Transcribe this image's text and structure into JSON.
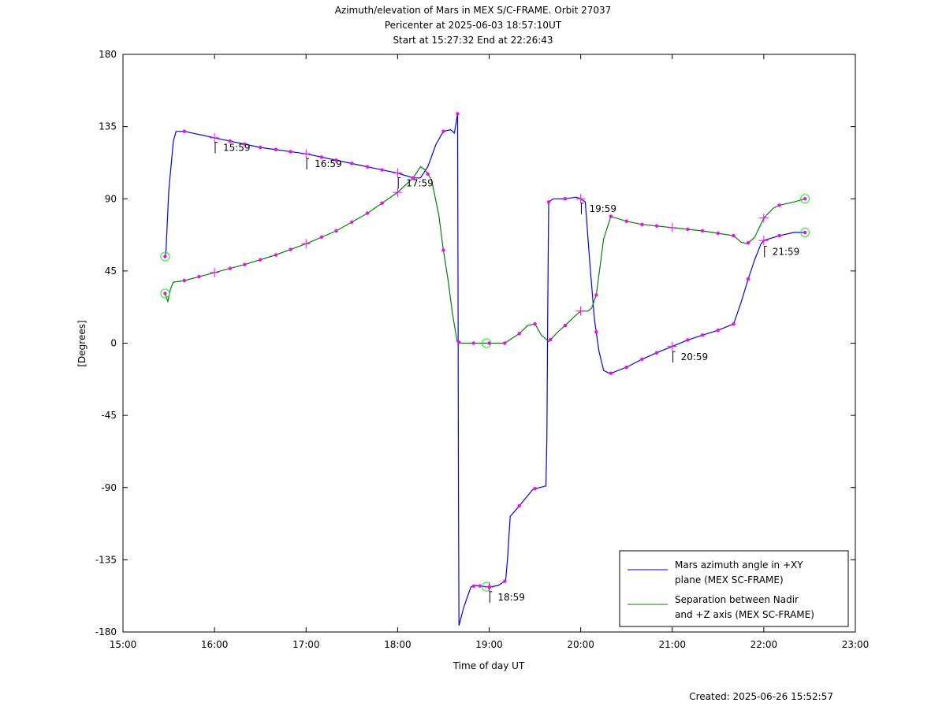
{
  "chart_data": {
    "type": "line",
    "title_lines": [
      "Azimuth/elevation of Mars in MEX S/C-FRAME.  Orbit 27037",
      "Pericenter at 2025-06-03 18:57:10UT",
      "Start at 15:27:32 End at 22:26:43"
    ],
    "xlabel": "Time of day UT",
    "ylabel": "[Degrees]",
    "xlim": [
      15.0,
      23.0
    ],
    "ylim": [
      -180,
      180
    ],
    "x_ticks": [
      {
        "v": 15,
        "label": "15:00"
      },
      {
        "v": 16,
        "label": "16:00"
      },
      {
        "v": 17,
        "label": "17:00"
      },
      {
        "v": 18,
        "label": "18:00"
      },
      {
        "v": 19,
        "label": "19:00"
      },
      {
        "v": 20,
        "label": "20:00"
      },
      {
        "v": 21,
        "label": "21:00"
      },
      {
        "v": 22,
        "label": "22:00"
      },
      {
        "v": 23,
        "label": "23:00"
      }
    ],
    "y_ticks": [
      {
        "v": 180,
        "label": "180"
      },
      {
        "v": 135,
        "label": "135"
      },
      {
        "v": 90,
        "label": "90"
      },
      {
        "v": 45,
        "label": "45"
      },
      {
        "v": 0,
        "label": "0"
      },
      {
        "v": -45,
        "label": "-45"
      },
      {
        "v": -90,
        "label": "-90"
      },
      {
        "v": -135,
        "label": "-135"
      },
      {
        "v": -180,
        "label": "-180"
      }
    ],
    "grid": false,
    "legend_position": "bottom-right",
    "series": [
      {
        "name": "Mars azimuth angle in +XY plane (MEX SC-FRAME)",
        "legend_lines": [
          "Mars azimuth angle in +XY",
          "plane (MEX SC-FRAME)"
        ],
        "color": "#0000ff",
        "points": [
          [
            15.46,
            54
          ],
          [
            15.47,
            58
          ],
          [
            15.5,
            95
          ],
          [
            15.55,
            126
          ],
          [
            15.58,
            132
          ],
          [
            15.67,
            132
          ],
          [
            16.0,
            128
          ],
          [
            16.5,
            122
          ],
          [
            17.0,
            118
          ],
          [
            17.5,
            112
          ],
          [
            17.83,
            108
          ],
          [
            18.0,
            106
          ],
          [
            18.17,
            103
          ],
          [
            18.25,
            103
          ],
          [
            18.33,
            110
          ],
          [
            18.42,
            124
          ],
          [
            18.5,
            132
          ],
          [
            18.58,
            133
          ],
          [
            18.62,
            131
          ],
          [
            18.655,
            143
          ],
          [
            18.66,
            40
          ],
          [
            18.665,
            -100
          ],
          [
            18.67,
            -176
          ],
          [
            18.72,
            -165
          ],
          [
            18.8,
            -152
          ],
          [
            18.85,
            -151
          ],
          [
            19.0,
            -152
          ],
          [
            19.1,
            -151
          ],
          [
            19.18,
            -148
          ],
          [
            19.2,
            -135
          ],
          [
            19.23,
            -108
          ],
          [
            19.32,
            -102
          ],
          [
            19.48,
            -91
          ],
          [
            19.55,
            -90
          ],
          [
            19.62,
            -89
          ],
          [
            19.63,
            -60
          ],
          [
            19.64,
            20
          ],
          [
            19.65,
            88
          ],
          [
            19.7,
            90
          ],
          [
            19.83,
            90
          ],
          [
            19.95,
            91
          ],
          [
            20.0,
            90
          ],
          [
            20.05,
            88
          ],
          [
            20.1,
            50
          ],
          [
            20.15,
            15
          ],
          [
            20.2,
            -5
          ],
          [
            20.25,
            -17
          ],
          [
            20.32,
            -19
          ],
          [
            20.5,
            -15
          ],
          [
            20.67,
            -10
          ],
          [
            20.83,
            -6
          ],
          [
            21.0,
            -2
          ],
          [
            21.17,
            2
          ],
          [
            21.33,
            5
          ],
          [
            21.5,
            8
          ],
          [
            21.67,
            12
          ],
          [
            21.75,
            25
          ],
          [
            21.83,
            40
          ],
          [
            21.9,
            52
          ],
          [
            21.97,
            62
          ],
          [
            22.0,
            64
          ],
          [
            22.17,
            67
          ],
          [
            22.33,
            69
          ],
          [
            22.45,
            69
          ]
        ],
        "dots_x": [
          15.46,
          15.67,
          16.17,
          16.33,
          16.5,
          16.67,
          16.83,
          17.17,
          17.33,
          17.5,
          17.67,
          17.83,
          18.17,
          18.5,
          18.655,
          18.83,
          18.9,
          19.0,
          19.17,
          19.33,
          19.5,
          19.65,
          19.83,
          20.17,
          20.33,
          20.5,
          20.67,
          20.83,
          21.17,
          21.33,
          21.5,
          21.67,
          21.83,
          22.17,
          22.45
        ],
        "plus_x": [
          16.0,
          17.0,
          18.0,
          19.0,
          20.0,
          21.0,
          22.0
        ],
        "circle_x": [
          15.46,
          18.97,
          22.45
        ],
        "time_marks": [
          {
            "x": 15.99,
            "label": "15:59"
          },
          {
            "x": 16.99,
            "label": "16:59"
          },
          {
            "x": 17.99,
            "label": "17:59"
          },
          {
            "x": 18.99,
            "label": "18:59"
          },
          {
            "x": 19.99,
            "label": "19:59"
          },
          {
            "x": 20.99,
            "label": "20:59"
          },
          {
            "x": 21.99,
            "label": "21:59"
          }
        ]
      },
      {
        "name": "Separation between Nadir and +Z axis (MEX SC-FRAME)",
        "legend_lines": [
          "Separation between Nadir",
          "and +Z axis (MEX SC-FRAME)"
        ],
        "color": "#008000",
        "points": [
          [
            15.46,
            31
          ],
          [
            15.49,
            26
          ],
          [
            15.52,
            34
          ],
          [
            15.55,
            38
          ],
          [
            15.67,
            39
          ],
          [
            16.0,
            44
          ],
          [
            16.33,
            49
          ],
          [
            16.67,
            55
          ],
          [
            17.0,
            62
          ],
          [
            17.33,
            70
          ],
          [
            17.67,
            81
          ],
          [
            18.0,
            94
          ],
          [
            18.17,
            103
          ],
          [
            18.25,
            110
          ],
          [
            18.3,
            108
          ],
          [
            18.37,
            102
          ],
          [
            18.45,
            80
          ],
          [
            18.5,
            58
          ],
          [
            18.55,
            40
          ],
          [
            18.6,
            18
          ],
          [
            18.65,
            1
          ],
          [
            18.7,
            0
          ],
          [
            19.0,
            0
          ],
          [
            19.17,
            0
          ],
          [
            19.33,
            6
          ],
          [
            19.42,
            11
          ],
          [
            19.5,
            12
          ],
          [
            19.57,
            5
          ],
          [
            19.65,
            1
          ],
          [
            19.75,
            7
          ],
          [
            19.83,
            11
          ],
          [
            19.92,
            16
          ],
          [
            20.0,
            20
          ],
          [
            20.08,
            20
          ],
          [
            20.12,
            22
          ],
          [
            20.17,
            30
          ],
          [
            20.25,
            65
          ],
          [
            20.33,
            79
          ],
          [
            20.5,
            76
          ],
          [
            20.67,
            74
          ],
          [
            21.0,
            72
          ],
          [
            21.33,
            70
          ],
          [
            21.67,
            67
          ],
          [
            21.75,
            63
          ],
          [
            21.82,
            62
          ],
          [
            21.9,
            66
          ],
          [
            22.0,
            78
          ],
          [
            22.1,
            84
          ],
          [
            22.17,
            86
          ],
          [
            22.33,
            88
          ],
          [
            22.45,
            90
          ]
        ],
        "dots_x": [
          15.46,
          15.67,
          15.83,
          16.17,
          16.33,
          16.5,
          16.67,
          16.83,
          17.17,
          17.33,
          17.5,
          17.67,
          17.83,
          18.17,
          18.33,
          18.5,
          18.67,
          18.83,
          19.0,
          19.17,
          19.33,
          19.5,
          19.67,
          19.83,
          20.17,
          20.33,
          20.5,
          20.67,
          20.83,
          21.17,
          21.33,
          21.5,
          21.67,
          21.83,
          22.17,
          22.45
        ],
        "plus_x": [
          16.0,
          17.0,
          18.0,
          20.0,
          21.0,
          22.0
        ],
        "circle_x": [
          15.46,
          18.97,
          22.45
        ]
      }
    ],
    "marker_color": "#ff00ff",
    "circle_color": "#00ff00"
  },
  "footer": {
    "created": "Created: 2025-06-26 15:52:57"
  }
}
